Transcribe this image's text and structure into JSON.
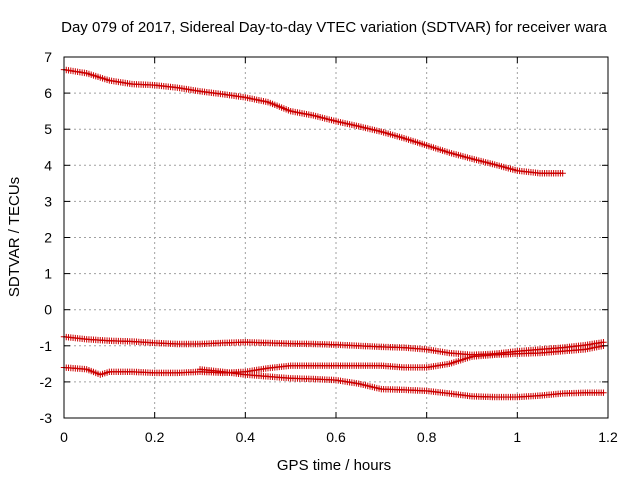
{
  "chart_data": {
    "type": "line",
    "title": "Day 079 of 2017, Sidereal Day-to-day VTEC variation (SDTVAR) for receiver wara",
    "xlabel": "GPS time / hours",
    "ylabel": "SDTVAR / TECUs",
    "xlim": [
      0,
      1.2
    ],
    "ylim": [
      -3,
      7
    ],
    "xticks": [
      0,
      0.2,
      0.4,
      0.6,
      0.8,
      1,
      1.2
    ],
    "xtick_labels": [
      "0",
      "0.2",
      "0.4",
      "0.6",
      "0.8",
      "1",
      "1.2"
    ],
    "yticks": [
      -3,
      -2,
      -1,
      0,
      1,
      2,
      3,
      4,
      5,
      6,
      7
    ],
    "ytick_labels": [
      "-3",
      "-2",
      "-1",
      "0",
      "1",
      "2",
      "3",
      "4",
      "5",
      "6",
      "7"
    ],
    "grid": true,
    "marker": "+",
    "color": "#cc0000",
    "series": [
      {
        "name": "series-1",
        "x": [
          0,
          0.05,
          0.1,
          0.15,
          0.2,
          0.25,
          0.3,
          0.35,
          0.4,
          0.45,
          0.5,
          0.55,
          0.6,
          0.65,
          0.7,
          0.75,
          0.8,
          0.85,
          0.9,
          0.95,
          1.0,
          1.05,
          1.1
        ],
        "values": [
          6.65,
          6.55,
          6.35,
          6.25,
          6.22,
          6.15,
          6.05,
          5.97,
          5.88,
          5.75,
          5.5,
          5.38,
          5.22,
          5.08,
          4.93,
          4.75,
          4.55,
          4.35,
          4.18,
          4.02,
          3.85,
          3.78,
          3.78
        ]
      },
      {
        "name": "series-2",
        "x": [
          0,
          0.05,
          0.1,
          0.15,
          0.2,
          0.25,
          0.3,
          0.35,
          0.4,
          0.45,
          0.5,
          0.55,
          0.6,
          0.65,
          0.7,
          0.75,
          0.8,
          0.85,
          0.9,
          0.95,
          1.0,
          1.05,
          1.1,
          1.15,
          1.19
        ],
        "values": [
          -0.75,
          -0.82,
          -0.86,
          -0.88,
          -0.92,
          -0.95,
          -0.95,
          -0.92,
          -0.9,
          -0.92,
          -0.94,
          -0.95,
          -0.97,
          -1.0,
          -1.03,
          -1.05,
          -1.1,
          -1.2,
          -1.25,
          -1.22,
          -1.15,
          -1.1,
          -1.05,
          -0.98,
          -0.9
        ]
      },
      {
        "name": "series-3",
        "x": [
          0,
          0.05,
          0.08,
          0.1,
          0.15,
          0.2,
          0.25,
          0.3,
          0.35,
          0.4,
          0.45,
          0.5,
          0.55,
          0.6,
          0.65,
          0.7,
          0.75,
          0.8,
          0.85,
          0.9,
          0.95,
          1.0,
          1.05,
          1.1,
          1.15,
          1.19
        ],
        "values": [
          -1.6,
          -1.65,
          -1.8,
          -1.72,
          -1.72,
          -1.75,
          -1.75,
          -1.72,
          -1.75,
          -1.72,
          -1.62,
          -1.55,
          -1.55,
          -1.55,
          -1.55,
          -1.55,
          -1.6,
          -1.6,
          -1.5,
          -1.3,
          -1.25,
          -1.22,
          -1.2,
          -1.15,
          -1.1,
          -1.0
        ]
      },
      {
        "name": "series-4",
        "x": [
          0.3,
          0.35,
          0.4,
          0.45,
          0.5,
          0.55,
          0.6,
          0.65,
          0.7,
          0.75,
          0.8,
          0.85,
          0.9,
          0.95,
          1.0,
          1.05,
          1.1,
          1.15,
          1.19
        ],
        "values": [
          -1.65,
          -1.72,
          -1.8,
          -1.85,
          -1.9,
          -1.92,
          -1.95,
          -2.05,
          -2.2,
          -2.22,
          -2.25,
          -2.32,
          -2.4,
          -2.42,
          -2.42,
          -2.38,
          -2.32,
          -2.3,
          -2.3
        ]
      }
    ]
  }
}
